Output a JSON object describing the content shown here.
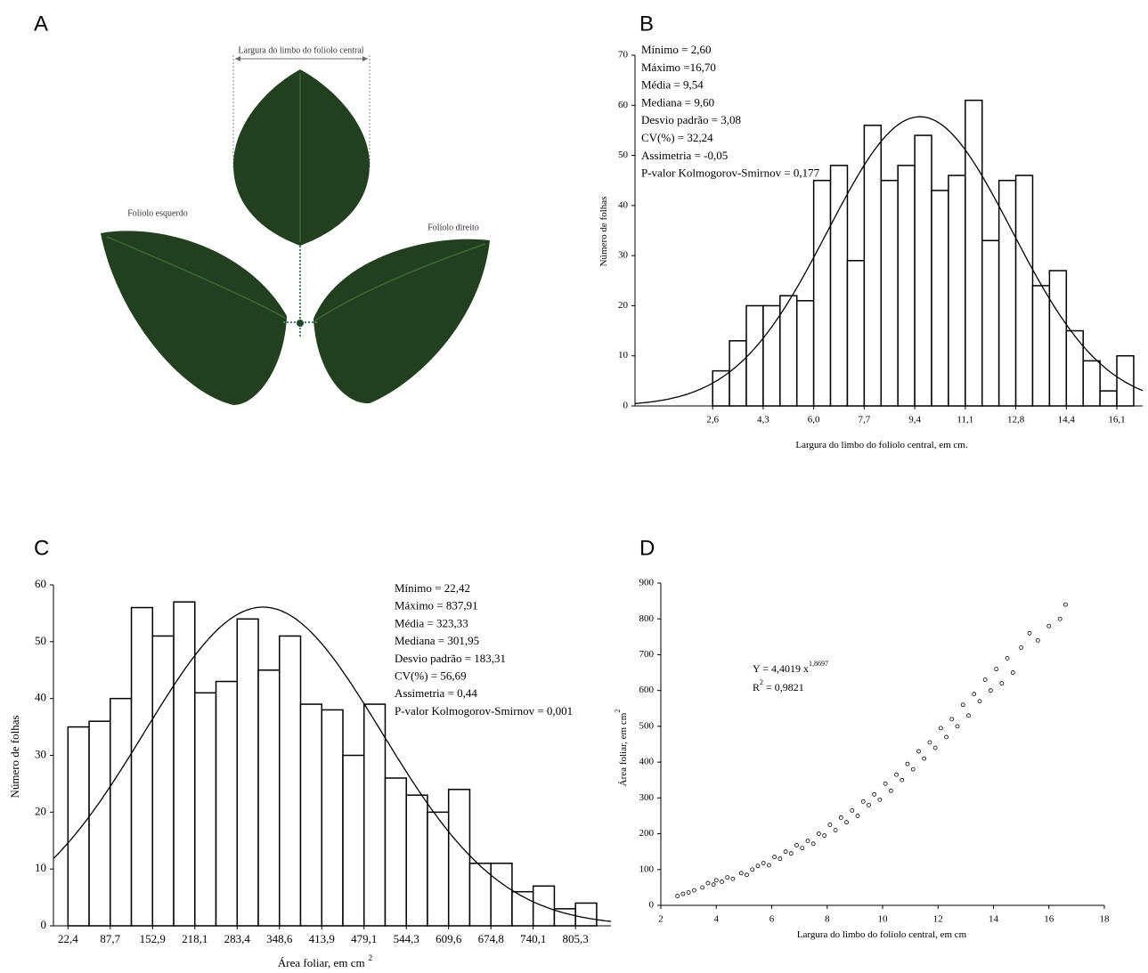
{
  "panel_labels": [
    "A",
    "B",
    "C",
    "D"
  ],
  "leaf_figure": {
    "width_label": "Largura do limbo do folíolo central",
    "left_label": "Folíolo esquerdo",
    "right_label": "Folíolo direito"
  },
  "chart_data": [
    {
      "type": "histogram",
      "stats": [
        "Mínimo = 2,60",
        "Máximo =16,70",
        "Média = 9,54",
        "Mediana = 9,60",
        "Desvio padrão = 3,08",
        "CV(%) = 32,24",
        "Assimetria = -0,05",
        "P-valor Kolmogorov-Smirnov = 0,177"
      ],
      "xlabel": "Largura do limbo do folíolo central, em cm.",
      "ylabel": "Número de folhas",
      "bins": [
        2.6,
        3.164,
        3.728,
        4.292,
        4.856,
        5.42,
        5.984,
        6.548,
        7.112,
        7.676,
        8.24,
        8.804,
        9.368,
        9.932,
        10.496,
        11.06,
        11.624,
        12.188,
        12.752,
        13.316,
        13.88,
        14.444,
        15.008,
        15.572,
        16.136,
        16.7
      ],
      "counts": [
        7,
        13,
        20,
        20,
        22,
        21,
        45,
        48,
        29,
        56,
        45,
        48,
        54,
        43,
        46,
        61,
        33,
        45,
        46,
        24,
        27,
        15,
        9,
        3,
        10
      ],
      "normal_fit": {
        "mean": 9.54,
        "sd": 3.08
      },
      "xlim": [
        0,
        17
      ],
      "xticks": [
        {
          "value": 2.6,
          "label": "2,6"
        },
        {
          "value": 4.292,
          "label": "4,3"
        },
        {
          "value": 5.984,
          "label": "6,0"
        },
        {
          "value": 7.676,
          "label": "7,7"
        },
        {
          "value": 9.368,
          "label": "9,4"
        },
        {
          "value": 11.06,
          "label": "11,1"
        },
        {
          "value": 12.752,
          "label": "12,8"
        },
        {
          "value": 14.444,
          "label": "14,4"
        },
        {
          "value": 16.136,
          "label": "16,1"
        }
      ],
      "ylim": [
        0,
        70
      ],
      "yticks": [
        0,
        10,
        20,
        30,
        40,
        50,
        60,
        70
      ],
      "color": "#ffffff"
    },
    {
      "type": "histogram",
      "stats": [
        "Mínimo = 22,42",
        "Máximo = 837,91",
        "Média = 323,33",
        "Mediana = 301,95",
        "Desvio padrão = 183,31",
        "CV(%) = 56,69",
        "Assimetria = 0,44",
        "P-valor Kolmogorov-Smirnov = 0,001"
      ],
      "xlabel": "Área foliar, em cm",
      "xlabel_sup": "2",
      "ylabel": "Número de folhas",
      "bins": [
        22.42,
        55.04,
        87.66,
        120.28,
        152.9,
        185.52,
        218.14,
        250.76,
        283.38,
        316.0,
        348.62,
        381.24,
        413.86,
        446.48,
        479.1,
        511.71,
        544.33,
        576.95,
        609.57,
        642.19,
        674.81,
        707.43,
        740.05,
        772.67,
        805.29,
        837.91
      ],
      "counts": [
        35,
        36,
        40,
        56,
        51,
        57,
        41,
        43,
        54,
        45,
        51,
        39,
        38,
        30,
        39,
        26,
        23,
        20,
        24,
        11,
        11,
        6,
        7,
        3,
        4
      ],
      "normal_fit": {
        "mean": 323.33,
        "sd": 183.31
      },
      "xlim": [
        0,
        860
      ],
      "xticks": [
        {
          "value": 22.42,
          "label": "22,4"
        },
        {
          "value": 87.66,
          "label": "87,7"
        },
        {
          "value": 152.9,
          "label": "152,9"
        },
        {
          "value": 218.14,
          "label": "218,1"
        },
        {
          "value": 283.38,
          "label": "283,4"
        },
        {
          "value": 348.62,
          "label": "348,6"
        },
        {
          "value": 413.86,
          "label": "413,9"
        },
        {
          "value": 479.1,
          "label": "479,1"
        },
        {
          "value": 544.33,
          "label": "544,3"
        },
        {
          "value": 609.57,
          "label": "609,6"
        },
        {
          "value": 674.81,
          "label": "674,8"
        },
        {
          "value": 740.05,
          "label": "740,1"
        },
        {
          "value": 805.29,
          "label": "805,3"
        }
      ],
      "ylim": [
        0,
        60
      ],
      "yticks": [
        0,
        10,
        20,
        30,
        40,
        50,
        60
      ],
      "color": "#ffffff"
    },
    {
      "type": "scatter",
      "equation": "Y = 4,4019 x",
      "equation_exponent": "1,8697",
      "r2_label": "R",
      "r2_sup": "2",
      "r2_value": "= 0,9821",
      "xlabel": "Largura do limbo do folíolo central, em cm",
      "ylabel": "Área foliar, em cm",
      "ylabel_sup": "2",
      "x": [
        2.6,
        2.8,
        3.0,
        3.2,
        3.5,
        3.7,
        3.9,
        4.0,
        4.2,
        4.4,
        4.6,
        4.9,
        5.1,
        5.3,
        5.5,
        5.7,
        5.9,
        6.1,
        6.3,
        6.5,
        6.7,
        6.9,
        7.1,
        7.3,
        7.5,
        7.7,
        7.9,
        8.1,
        8.3,
        8.5,
        8.7,
        8.9,
        9.1,
        9.3,
        9.5,
        9.7,
        9.9,
        10.1,
        10.3,
        10.5,
        10.7,
        10.9,
        11.1,
        11.3,
        11.5,
        11.7,
        11.9,
        12.1,
        12.3,
        12.5,
        12.7,
        12.9,
        13.1,
        13.3,
        13.5,
        13.7,
        13.9,
        14.1,
        14.3,
        14.5,
        14.7,
        15.0,
        15.3,
        15.6,
        16.0,
        16.4,
        16.6
      ],
      "y": [
        26,
        32,
        36,
        42,
        50,
        62,
        58,
        70,
        66,
        78,
        74,
        90,
        85,
        100,
        110,
        118,
        112,
        135,
        130,
        150,
        145,
        168,
        160,
        180,
        172,
        200,
        195,
        225,
        210,
        245,
        232,
        265,
        250,
        290,
        280,
        310,
        295,
        340,
        320,
        365,
        350,
        395,
        380,
        430,
        410,
        455,
        440,
        495,
        470,
        520,
        500,
        560,
        530,
        590,
        570,
        630,
        600,
        660,
        620,
        690,
        650,
        720,
        760,
        740,
        780,
        800,
        840
      ],
      "xlim": [
        2,
        18
      ],
      "xticks": [
        2,
        4,
        6,
        8,
        10,
        12,
        14,
        16,
        18
      ],
      "ylim": [
        0,
        900
      ],
      "yticks": [
        0,
        100,
        200,
        300,
        400,
        500,
        600,
        700,
        800,
        900
      ],
      "color": "#ffffff"
    }
  ]
}
